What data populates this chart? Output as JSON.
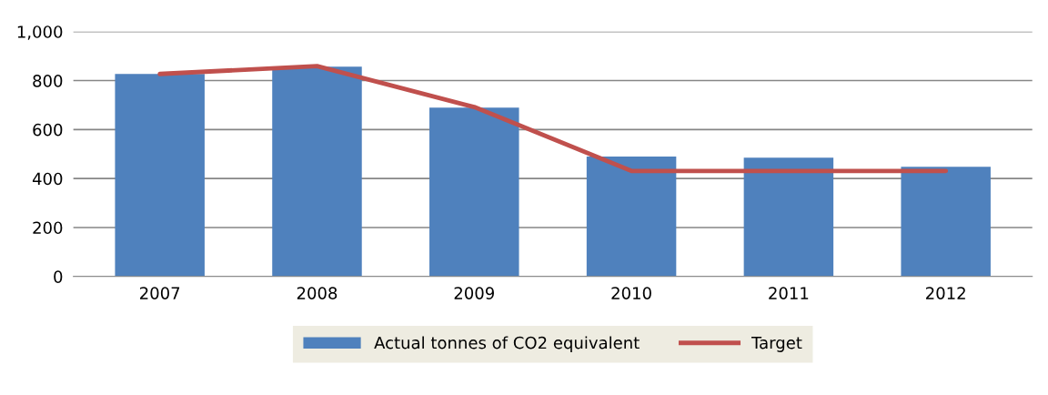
{
  "chart_data": {
    "type": "bar",
    "categories": [
      "2007",
      "2008",
      "2009",
      "2010",
      "2011",
      "2012"
    ],
    "series": [
      {
        "name": "Actual tonnes of CO2 equivalent",
        "color": "#4f81bd",
        "values": [
          827,
          857,
          690,
          490,
          485,
          448
        ]
      },
      {
        "name": "Target",
        "type": "line",
        "color": "#c0504d",
        "values": [
          827,
          859,
          692,
          431,
          431,
          431
        ]
      }
    ],
    "ylim": [
      0,
      1000
    ],
    "yticks": [
      0,
      200,
      400,
      600,
      800,
      {
        "value": 1000,
        "label": "1,000"
      }
    ],
    "grid": "y",
    "legend": "bottom"
  }
}
